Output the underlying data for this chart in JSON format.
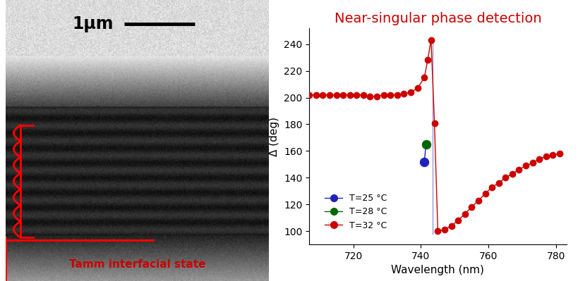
{
  "title": "Near-singular phase detection",
  "title_color": "#cc0000",
  "title_fontsize": 14,
  "xlabel": "Wavelength (nm)",
  "ylabel": "Δ (deg)",
  "xlim": [
    707,
    783
  ],
  "ylim": [
    90,
    252
  ],
  "xticks": [
    720,
    740,
    760,
    780
  ],
  "yticks": [
    100,
    120,
    140,
    160,
    180,
    200,
    220,
    240
  ],
  "legend_labels": [
    "T=25 °C",
    "T=28 °C",
    "T=32 °C"
  ],
  "legend_colors": [
    "#2222bb",
    "#006600",
    "#cc0000"
  ],
  "marker_size": 6,
  "line_color": "#cc0000",
  "line_width": 1.0,
  "scalebar_label": "1μm",
  "tamm_label": "Tamm interfacial state",
  "left_label_color": "#cc0000",
  "wavelengths_main": [
    707,
    709,
    711,
    713,
    715,
    717,
    719,
    721,
    723,
    725,
    727,
    729,
    731,
    733,
    735,
    737,
    739,
    741,
    742,
    743,
    744,
    745,
    747,
    749,
    751,
    753,
    755,
    757,
    759,
    761,
    763,
    765,
    767,
    769,
    771,
    773,
    775,
    777,
    779,
    781
  ],
  "delta_main": [
    202,
    202,
    202,
    202,
    202,
    202,
    202,
    202,
    202,
    201,
    201,
    202,
    202,
    202,
    203,
    204,
    207,
    215,
    228,
    243,
    181,
    100,
    101,
    104,
    108,
    113,
    118,
    123,
    128,
    133,
    136,
    140,
    143,
    146,
    149,
    151,
    154,
    156,
    157,
    158
  ],
  "t25_wavelength": 741.0,
  "t25_delta": 152,
  "t28_wavelength": 741.5,
  "t28_delta": 165,
  "singular_x": 743.5,
  "singular_y_top": 243,
  "singular_y_bot": 98
}
